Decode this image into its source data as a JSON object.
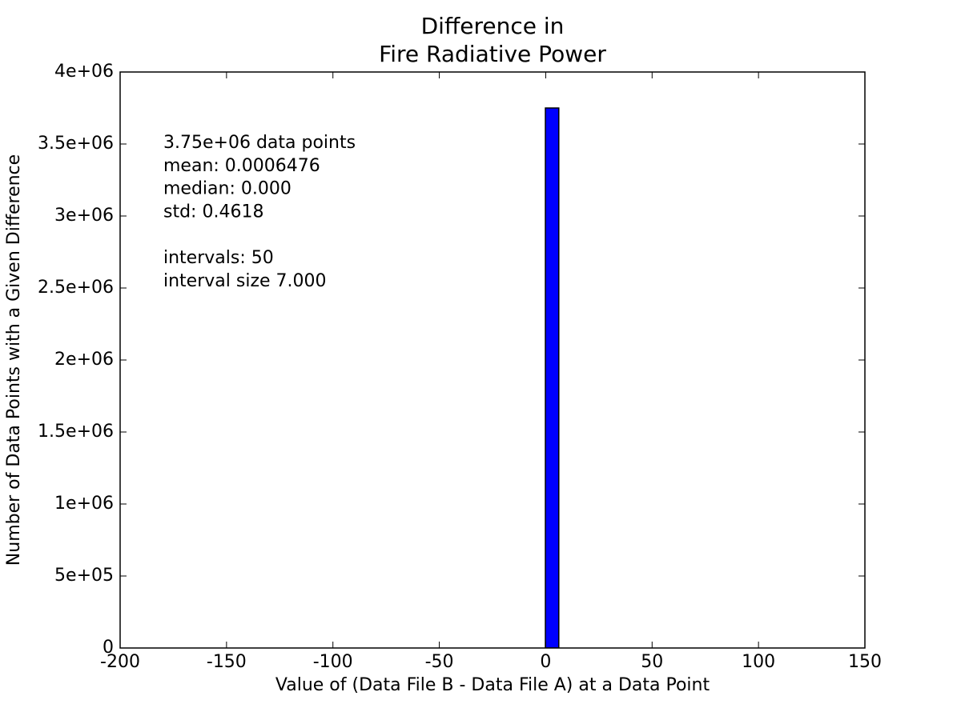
{
  "chart_data": {
    "type": "histogram",
    "title": "Difference in",
    "subtitle": "Fire Radiative Power",
    "xlabel": "Value of (Data File B - Data File A) at a Data Point",
    "ylabel": "Number of Data Points with a Given Difference",
    "annotation": [
      "3.75e+06 data points",
      "mean: 0.0006476",
      "median: 0.000",
      "std: 0.4618",
      "intervals: 50",
      "interval size 7.000"
    ],
    "color": "#0000ff",
    "bins": [
      -196.5,
      -189.5,
      -182.5,
      -175.5,
      -168.5,
      -161.5,
      -154.5,
      -147.5,
      -140.5,
      -133.5,
      -126.5,
      -119.5,
      -112.5,
      -105.5,
      -98.5,
      -91.5,
      -84.5,
      -77.5,
      -70.5,
      -63.5,
      -56.5,
      -49.5,
      -42.5,
      -35.5,
      -28.5,
      -21.5,
      -14.5,
      -7.5,
      -0.5,
      6.5,
      13.5,
      20.5,
      27.5,
      34.5,
      41.5,
      48.5,
      55.5,
      62.5,
      69.5,
      76.5,
      83.5,
      90.5,
      97.5,
      104.5,
      111.5,
      118.5,
      125.5,
      132.5,
      139.5,
      146.5,
      153.5
    ],
    "counts": [
      0,
      0,
      0,
      0,
      0,
      0,
      0,
      0,
      0,
      0,
      0,
      0,
      0,
      0,
      0,
      0,
      0,
      0,
      0,
      0,
      0,
      0,
      0,
      0,
      0,
      0,
      0,
      0,
      3750000,
      0,
      0,
      0,
      0,
      0,
      0,
      0,
      0,
      0,
      0,
      0,
      0,
      0,
      0,
      0,
      0,
      0,
      0,
      0,
      0,
      0
    ],
    "xlim": [
      -200,
      150
    ],
    "xticks": [
      -200,
      -150,
      -100,
      -50,
      0,
      50,
      100,
      150
    ],
    "ylim": [
      0,
      4000000
    ],
    "yticks": [
      0,
      {
        "value": 500000,
        "label": "5e+05"
      },
      {
        "value": 1000000,
        "label": "1e+06"
      },
      {
        "value": 1500000,
        "label": "1.5e+06"
      },
      {
        "value": 2000000,
        "label": "2e+06"
      },
      {
        "value": 2500000,
        "label": "2.5e+06"
      },
      {
        "value": 3000000,
        "label": "3e+06"
      },
      {
        "value": 3500000,
        "label": "3.5e+06"
      },
      {
        "value": 4000000,
        "label": "4e+06"
      }
    ]
  }
}
